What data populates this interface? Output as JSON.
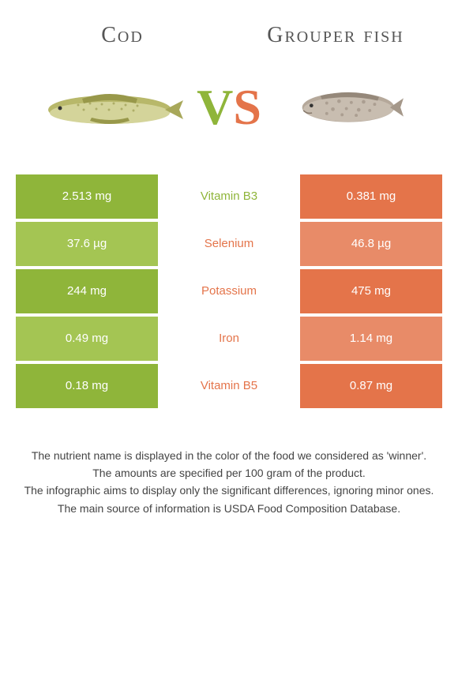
{
  "colors": {
    "green_dark": "#8fb53a",
    "green_light": "#a4c553",
    "orange_dark": "#e4744a",
    "orange_light": "#e88b68",
    "text_white": "#ffffff",
    "background": "#ffffff"
  },
  "header": {
    "left_title": "Cod",
    "right_title": "Grouper fish",
    "vs_v": "V",
    "vs_s": "S"
  },
  "rows": [
    {
      "left": "2.513 mg",
      "mid": "Vitamin B3",
      "right": "0.381 mg",
      "winner": "left"
    },
    {
      "left": "37.6 µg",
      "mid": "Selenium",
      "right": "46.8 µg",
      "winner": "right"
    },
    {
      "left": "244 mg",
      "mid": "Potassium",
      "right": "475 mg",
      "winner": "right"
    },
    {
      "left": "0.49 mg",
      "mid": "Iron",
      "right": "1.14 mg",
      "winner": "right"
    },
    {
      "left": "0.18 mg",
      "mid": "Vitamin B5",
      "right": "0.87 mg",
      "winner": "right"
    }
  ],
  "footer": {
    "line1": "The nutrient name is displayed in the color of the food we considered as 'winner'.",
    "line2": "The amounts are specified per 100 gram of the product.",
    "line3": "The infographic aims to display only the significant differences, ignoring minor ones.",
    "line4": "The main source of information is USDA Food Composition Database."
  }
}
